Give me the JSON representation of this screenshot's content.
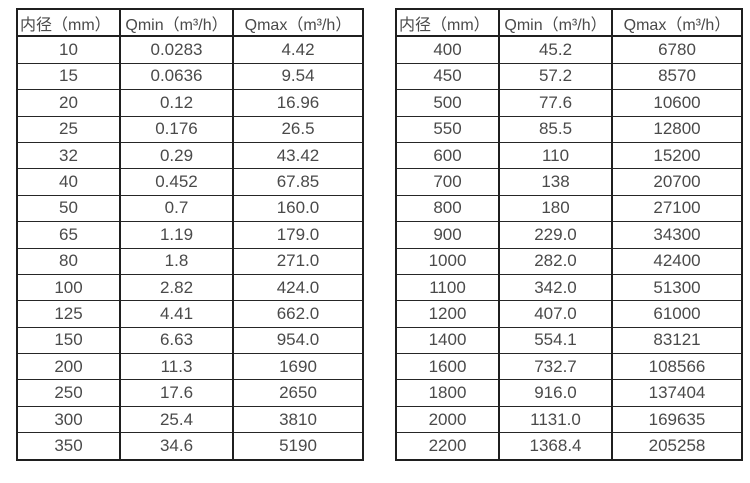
{
  "page": {
    "background": "#ffffff",
    "text_color": "#4a4a4a",
    "border_color": "#1f1f1f"
  },
  "tables": [
    {
      "name": "small-diameter-flow-table",
      "headers": [
        "内径（mm）",
        "Qmin（m³/h）",
        "Qmax（m³/h）"
      ],
      "rows": [
        [
          "10",
          "0.0283",
          "4.42"
        ],
        [
          "15",
          "0.0636",
          "9.54"
        ],
        [
          "20",
          "0.12",
          "16.96"
        ],
        [
          "25",
          "0.176",
          "26.5"
        ],
        [
          "32",
          "0.29",
          "43.42"
        ],
        [
          "40",
          "0.452",
          "67.85"
        ],
        [
          "50",
          "0.7",
          "160.0"
        ],
        [
          "65",
          "1.19",
          "179.0"
        ],
        [
          "80",
          "1.8",
          "271.0"
        ],
        [
          "100",
          "2.82",
          "424.0"
        ],
        [
          "125",
          "4.41",
          "662.0"
        ],
        [
          "150",
          "6.63",
          "954.0"
        ],
        [
          "200",
          "11.3",
          "1690"
        ],
        [
          "250",
          "17.6",
          "2650"
        ],
        [
          "300",
          "25.4",
          "3810"
        ],
        [
          "350",
          "34.6",
          "5190"
        ]
      ]
    },
    {
      "name": "large-diameter-flow-table",
      "headers": [
        "内径（mm）",
        "Qmin（m³/h）",
        "Qmax（m³/h）"
      ],
      "rows": [
        [
          "400",
          "45.2",
          "6780"
        ],
        [
          "450",
          "57.2",
          "8570"
        ],
        [
          "500",
          "77.6",
          "10600"
        ],
        [
          "550",
          "85.5",
          "12800"
        ],
        [
          "600",
          "110",
          "15200"
        ],
        [
          "700",
          "138",
          "20700"
        ],
        [
          "800",
          "180",
          "27100"
        ],
        [
          "900",
          "229.0",
          "34300"
        ],
        [
          "1000",
          "282.0",
          "42400"
        ],
        [
          "1100",
          "342.0",
          "51300"
        ],
        [
          "1200",
          "407.0",
          "61000"
        ],
        [
          "1400",
          "554.1",
          "83121"
        ],
        [
          "1600",
          "732.7",
          "108566"
        ],
        [
          "1800",
          "916.0",
          "137404"
        ],
        [
          "2000",
          "1131.0",
          "169635"
        ],
        [
          "2200",
          "1368.4",
          "205258"
        ]
      ]
    }
  ]
}
